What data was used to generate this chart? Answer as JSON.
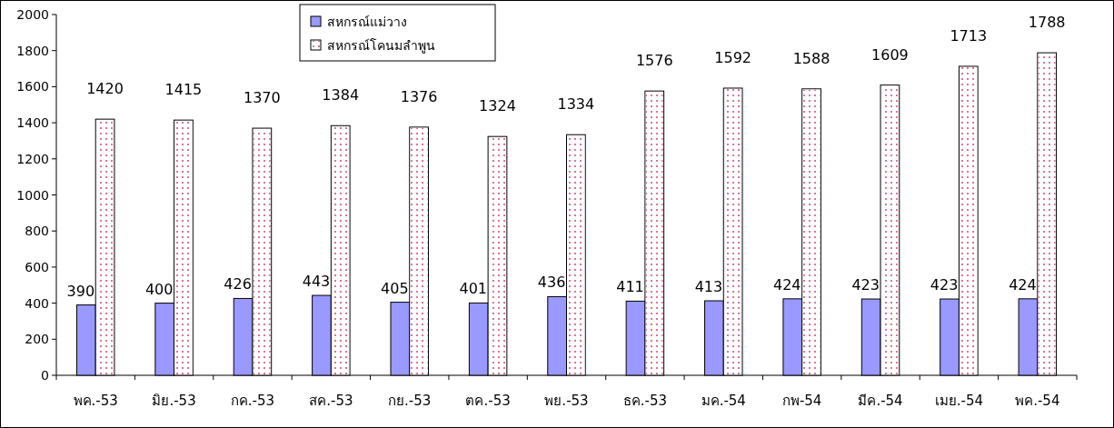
{
  "chart_data": {
    "type": "bar",
    "categories": [
      "พค.-53",
      "มิย.-53",
      "กค.-53",
      "สค.-53",
      "กย.-53",
      "ตค.-53",
      "พย.-53",
      "ธค.-53",
      "มค.-54",
      "กพ-54",
      "มีค.-54",
      "เมย.-54",
      "พค.-54"
    ],
    "series": [
      {
        "name": "สหกรณ์แม่วาง",
        "color": "#9999ff",
        "values": [
          390,
          400,
          426,
          443,
          405,
          401,
          436,
          411,
          413,
          424,
          423,
          423,
          424
        ]
      },
      {
        "name": "สหกรณ์โคนมลำพูน",
        "color": "#ffffff",
        "values": [
          1420,
          1415,
          1370,
          1384,
          1376,
          1324,
          1334,
          1576,
          1592,
          1588,
          1609,
          1713,
          1788
        ]
      }
    ],
    "ylim": [
      0,
      2000
    ],
    "yticks": [
      0,
      200,
      400,
      600,
      800,
      1000,
      1200,
      1400,
      1600,
      1800,
      2000
    ],
    "data_labels": true,
    "legend": "top",
    "grid": false
  }
}
